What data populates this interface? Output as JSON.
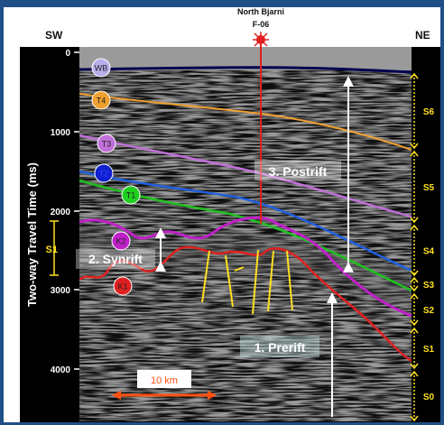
{
  "header": {
    "well_name": "North Bjarni",
    "well_id": "F-06",
    "left_direction": "SW",
    "right_direction": "NE"
  },
  "axis": {
    "ylabel": "Two-way Travel Time (ms)",
    "ticks": [
      "0",
      "1000",
      "2000",
      "3000",
      "4000"
    ]
  },
  "horizons": [
    {
      "label": "WB",
      "color": "#b8aee8"
    },
    {
      "label": "T4",
      "color": "#f0a030"
    },
    {
      "label": "T3",
      "color": "#c070d8"
    },
    {
      "label": "T2",
      "color": "#1020d0"
    },
    {
      "label": "T1",
      "color": "#20d020"
    },
    {
      "label": "K2",
      "color": "#c020c8"
    },
    {
      "label": "K1",
      "color": "#e02020"
    }
  ],
  "sequences": [
    "S6",
    "S5",
    "S4",
    "S3",
    "S2",
    "S1",
    "S0"
  ],
  "left_sequence": "S1",
  "phases": {
    "postrift": "3. Postrift",
    "synrift": "2. Synrift",
    "prerift": "1. Prerift"
  },
  "scale_bar": "10 km",
  "colors": {
    "background": "#1f4f86",
    "seismic": "#8a8a8a",
    "sequence_bracket": "#ffe020",
    "fault": "#ffe020",
    "well": "#e02020",
    "scale_bar": "#ff5010"
  }
}
